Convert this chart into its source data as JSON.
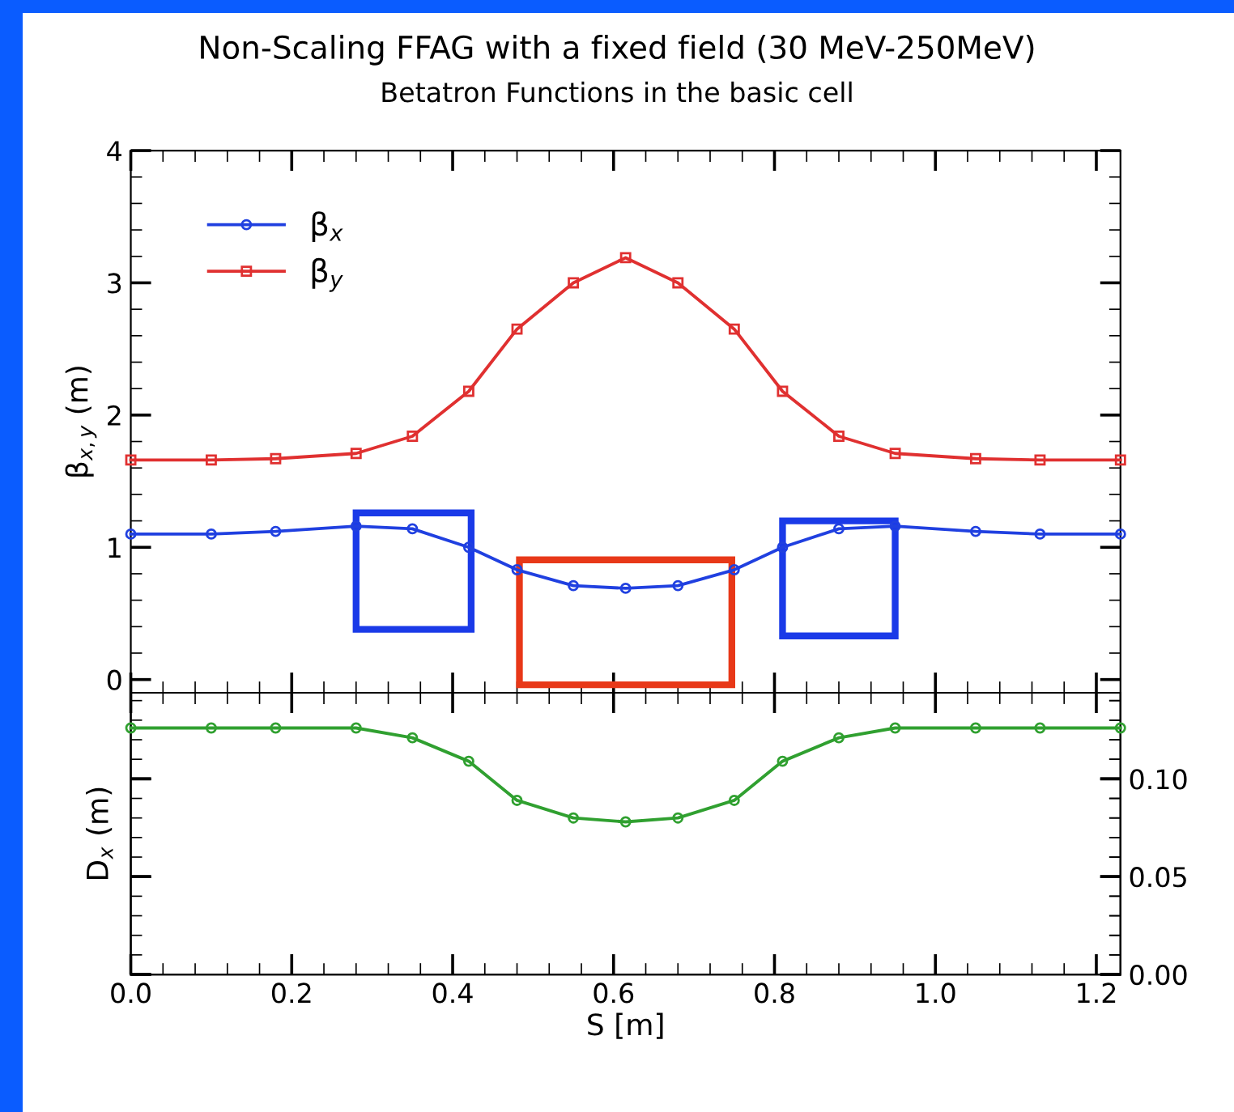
{
  "chart_data": [
    {
      "type": "line",
      "title": "Non-Scaling FFAG with a fixed field (30 MeV-250MeV)",
      "subtitle": "Betatron Functions in the basic cell",
      "ylabel": "β$_{x,y}$ (m)",
      "x": [
        0,
        0.1,
        0.18,
        0.28,
        0.35,
        0.42,
        0.48,
        0.55,
        0.615,
        0.68,
        0.75,
        0.81,
        0.88,
        0.95,
        1.05,
        1.13,
        1.23
      ],
      "series": [
        {
          "name": "β$_{x}$",
          "color": "#2040e0",
          "marker": "circle",
          "values": [
            1.1,
            1.1,
            1.12,
            1.16,
            1.14,
            1.0,
            0.83,
            0.71,
            0.69,
            0.71,
            0.83,
            1.0,
            1.14,
            1.16,
            1.12,
            1.1,
            1.1
          ]
        },
        {
          "name": "β$_{y}$",
          "color": "#e03030",
          "marker": "square",
          "values": [
            1.66,
            1.66,
            1.67,
            1.71,
            1.84,
            2.18,
            2.65,
            3.0,
            3.19,
            3.0,
            2.65,
            2.18,
            1.84,
            1.71,
            1.67,
            1.66,
            1.66
          ]
        }
      ],
      "xlim": [
        0,
        1.23
      ],
      "xticks": [
        0,
        0.2,
        0.4,
        0.6,
        0.8,
        1.0,
        1.2
      ],
      "ylim": [
        -0.1,
        4
      ],
      "yticks": [
        0,
        1,
        2,
        3,
        4
      ],
      "tick_labels": "y",
      "legend": "top left",
      "grid": false
    },
    {
      "type": "line",
      "xlabel": "S [m]",
      "ylabel": "D$_{x}$ (m)",
      "x": [
        0,
        0.1,
        0.18,
        0.28,
        0.35,
        0.42,
        0.48,
        0.55,
        0.615,
        0.68,
        0.75,
        0.81,
        0.88,
        0.95,
        1.05,
        1.13,
        1.23
      ],
      "series": [
        {
          "color": "#30a030",
          "marker": "circle",
          "axis": "y2",
          "values": [
            0.126,
            0.126,
            0.126,
            0.126,
            0.121,
            0.109,
            0.089,
            0.08,
            0.078,
            0.08,
            0.089,
            0.109,
            0.121,
            0.126,
            0.126,
            0.126,
            0.126
          ]
        }
      ],
      "xlim": [
        0,
        1.23
      ],
      "xticks": [
        {
          "value": 0,
          "label": "0.0"
        },
        0.2,
        0.4,
        0.6,
        0.8,
        {
          "value": 1.0,
          "label": "1.0"
        },
        1.2
      ],
      "y2lim": [
        0,
        0.144
      ],
      "y2ticks": [
        {
          "value": 0,
          "label": "0.00"
        },
        {
          "value": 0.05,
          "label": "0.05"
        },
        {
          "value": 0.1,
          "label": "0.10"
        }
      ],
      "grid": false
    }
  ]
}
